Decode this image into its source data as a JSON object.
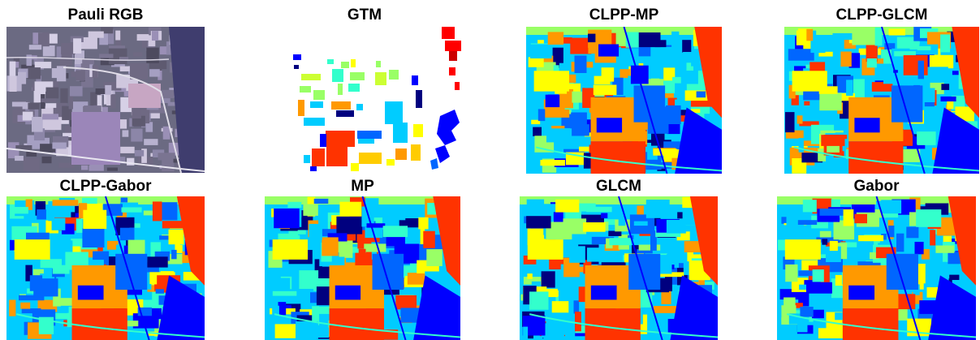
{
  "figure": {
    "panels": [
      {
        "id": "pauli",
        "title": "Pauli RGB",
        "kind": "rgb"
      },
      {
        "id": "gtm",
        "title": "GTM",
        "kind": "ground-truth"
      },
      {
        "id": "clpp-mp",
        "title": "CLPP-MP",
        "kind": "classification"
      },
      {
        "id": "clpp-glcm",
        "title": "CLPP-GLCM",
        "kind": "classification"
      },
      {
        "id": "clpp-gabor",
        "title": "CLPP-Gabor",
        "kind": "classification"
      },
      {
        "id": "mp",
        "title": "MP",
        "kind": "classification"
      },
      {
        "id": "glcm",
        "title": "GLCM",
        "kind": "classification"
      },
      {
        "id": "gabor",
        "title": "Gabor",
        "kind": "classification"
      }
    ],
    "palette": [
      "#00007f",
      "#0000ff",
      "#0066ff",
      "#00ccff",
      "#33ffcc",
      "#99ff66",
      "#ffff00",
      "#ff9900",
      "#ff3300",
      "#cc0000"
    ]
  }
}
